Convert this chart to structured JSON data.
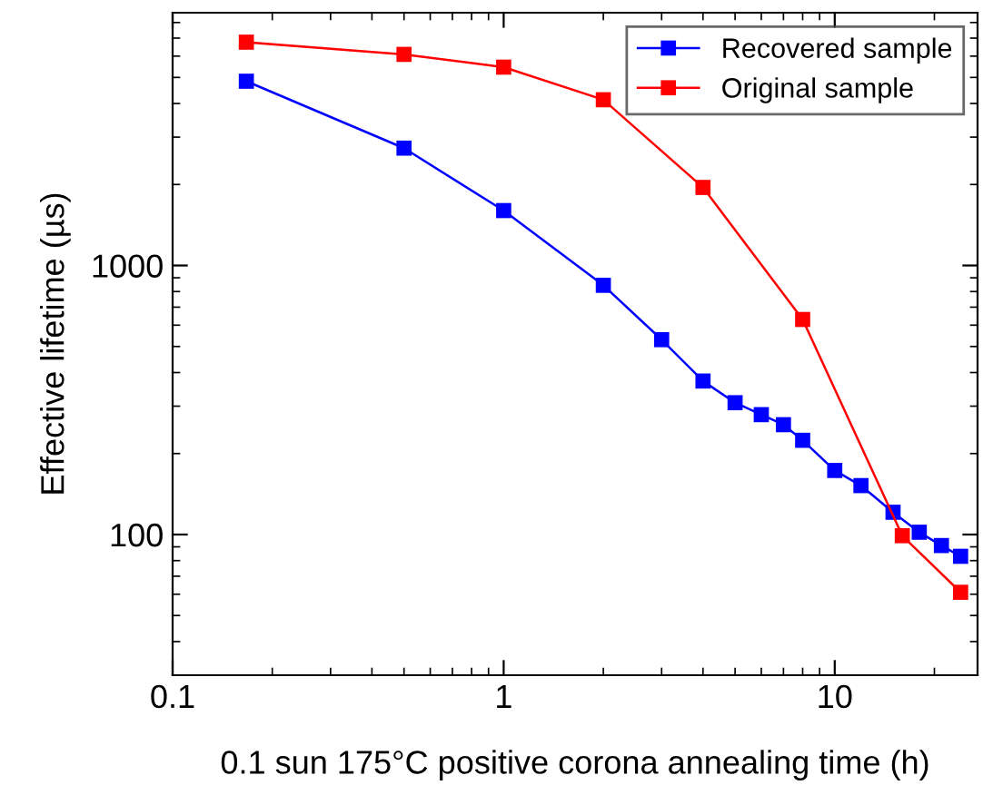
{
  "chart_data": {
    "type": "line",
    "xlabel": "0.1 sun 175°C positive corona annealing time (h)",
    "ylabel": "Effective lifetime (µs)",
    "log": "xy",
    "xlim": [
      0.1,
      27
    ],
    "ylim": [
      30,
      8700
    ],
    "xticks": [
      0.1,
      1,
      10
    ],
    "yticks": [
      100,
      1000
    ],
    "marker": "square",
    "line_style": "solid",
    "grid": false,
    "legend": "top right",
    "series": [
      {
        "name": "Recovered sample",
        "color": "#0000ff",
        "x": [
          0.167,
          0.5,
          1,
          2,
          3,
          4,
          5,
          6,
          7,
          8,
          10,
          12,
          15,
          18,
          21,
          24
        ],
        "values": [
          4840,
          2730,
          1600,
          844,
          530,
          372,
          309,
          279,
          256,
          224,
          173,
          152,
          121,
          102,
          91,
          83
        ]
      },
      {
        "name": "Original sample",
        "color": "#ff0000",
        "x": [
          0.167,
          0.5,
          1,
          2,
          4,
          8,
          16,
          24
        ],
        "values": [
          6760,
          6090,
          5460,
          4130,
          1950,
          630,
          99,
          61
        ]
      }
    ]
  }
}
